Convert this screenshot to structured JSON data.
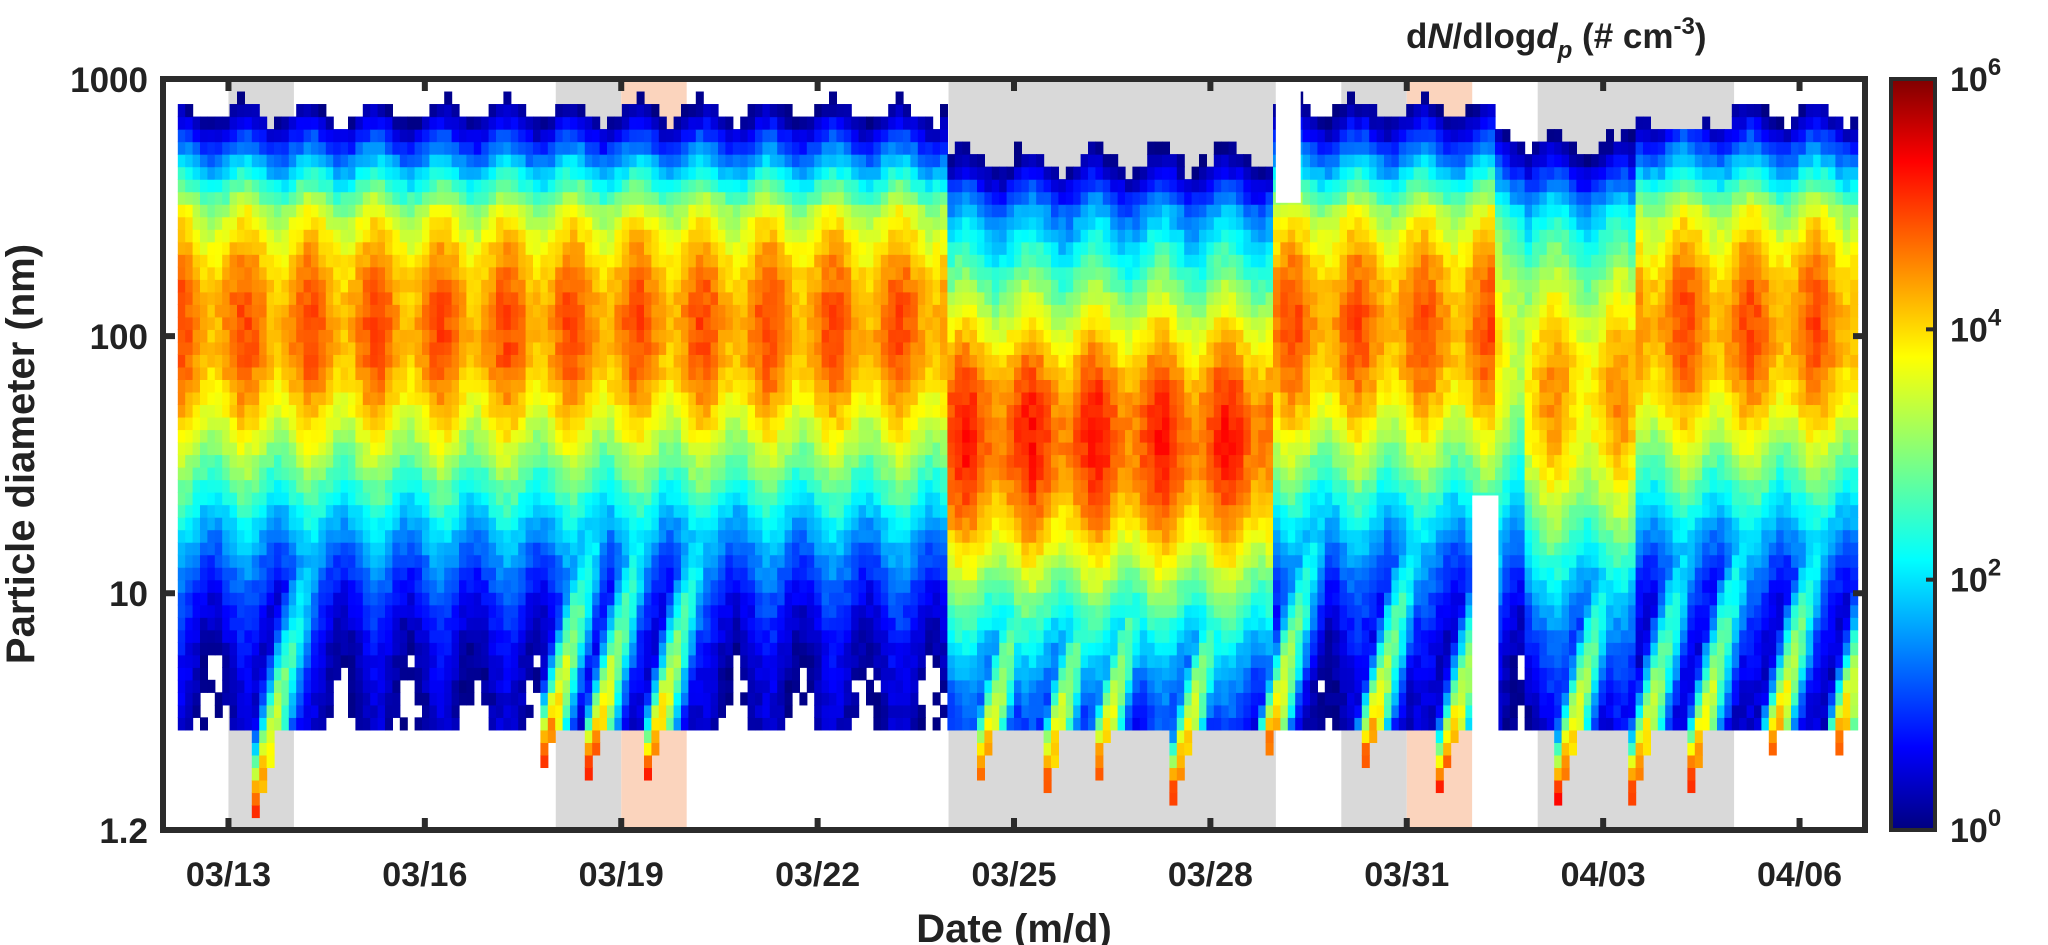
{
  "chart_data": {
    "type": "heatmap",
    "title": "dN/dlogdp (# cm-3)",
    "title_parts": [
      {
        "text": "d",
        "italic": false,
        "sup": false,
        "sub": false
      },
      {
        "text": "N",
        "italic": true,
        "sup": false,
        "sub": false
      },
      {
        "text": "/dlog",
        "italic": false,
        "sup": false,
        "sub": false
      },
      {
        "text": "d",
        "italic": true,
        "sup": false,
        "sub": false
      },
      {
        "text": "p",
        "italic": true,
        "sup": false,
        "sub": true
      },
      {
        "text": " (# cm",
        "italic": false,
        "sup": false,
        "sub": false
      },
      {
        "text": "-3",
        "italic": false,
        "sup": true,
        "sub": false
      },
      {
        "text": ")",
        "italic": false,
        "sup": false,
        "sub": false
      }
    ],
    "xlabel": "Date (m/d)",
    "ylabel": "Particle diameter (nm)",
    "x_start": "03/12",
    "x_end": "04/07",
    "xlim_days": [
      -1.0,
      25.0
    ],
    "x_ticks": [
      {
        "label": "03/13",
        "day": 0
      },
      {
        "label": "03/16",
        "day": 3
      },
      {
        "label": "03/19",
        "day": 6
      },
      {
        "label": "03/22",
        "day": 9
      },
      {
        "label": "03/25",
        "day": 12
      },
      {
        "label": "03/28",
        "day": 15
      },
      {
        "label": "03/31",
        "day": 18
      },
      {
        "label": "04/03",
        "day": 21
      },
      {
        "label": "04/06",
        "day": 24
      }
    ],
    "y_scale": "log",
    "ylim": [
      1.2,
      1000
    ],
    "y_ticks": [
      {
        "label": "1.2",
        "value": 1.2
      },
      {
        "label": "10",
        "value": 10
      },
      {
        "label": "100",
        "value": 100
      },
      {
        "label": "1000",
        "value": 1000
      }
    ],
    "colorbar": {
      "scale": "log",
      "range": [
        1,
        1000000
      ],
      "colormap": "jet",
      "ticks": [
        {
          "base": "10",
          "exp": "0",
          "value": 1
        },
        {
          "base": "10",
          "exp": "2",
          "value": 100
        },
        {
          "base": "10",
          "exp": "4",
          "value": 10000
        },
        {
          "base": "10",
          "exp": "6",
          "value": 1000000
        }
      ]
    },
    "shaded_periods": [
      {
        "start": 0.0,
        "end": 1.0,
        "color": "#d9d9d9"
      },
      {
        "start": 5.0,
        "end": 6.0,
        "color": "#d9d9d9"
      },
      {
        "start": 6.0,
        "end": 7.0,
        "color": "#fbd4bd"
      },
      {
        "start": 11.0,
        "end": 16.0,
        "color": "#d9d9d9"
      },
      {
        "start": 17.0,
        "end": 18.0,
        "color": "#d9d9d9"
      },
      {
        "start": 18.0,
        "end": 19.0,
        "color": "#fbd4bd"
      },
      {
        "start": 20.0,
        "end": 23.0,
        "color": "#d9d9d9"
      }
    ],
    "data_gaps": [
      {
        "start": 16.0,
        "end": 16.38,
        "dp_min": 330,
        "dp_max": 1000
      },
      {
        "start": 19.0,
        "end": 19.4,
        "dp_min": 1.2,
        "dp_max": 24
      }
    ],
    "measurement_lower_limit_nm": 3.0,
    "measurement_upper_limit_nm": 1000,
    "nucleation_events": [
      {
        "day": 0.35,
        "min_dp": 1.2
      },
      {
        "day": 4.8,
        "min_dp": 2.0
      },
      {
        "day": 5.5,
        "min_dp": 1.9
      },
      {
        "day": 6.4,
        "min_dp": 1.8
      },
      {
        "day": 11.4,
        "min_dp": 1.5
      },
      {
        "day": 12.4,
        "min_dp": 1.4
      },
      {
        "day": 13.2,
        "min_dp": 1.6
      },
      {
        "day": 14.4,
        "min_dp": 1.4
      },
      {
        "day": 15.8,
        "min_dp": 1.9
      },
      {
        "day": 17.3,
        "min_dp": 1.8
      },
      {
        "day": 18.5,
        "min_dp": 1.6
      },
      {
        "day": 20.3,
        "min_dp": 1.5
      },
      {
        "day": 21.4,
        "min_dp": 1.4
      },
      {
        "day": 22.3,
        "min_dp": 1.6
      },
      {
        "day": 23.5,
        "min_dp": 1.9
      },
      {
        "day": 24.5,
        "min_dp": 1.9
      }
    ],
    "grid": false,
    "legend": "none"
  }
}
